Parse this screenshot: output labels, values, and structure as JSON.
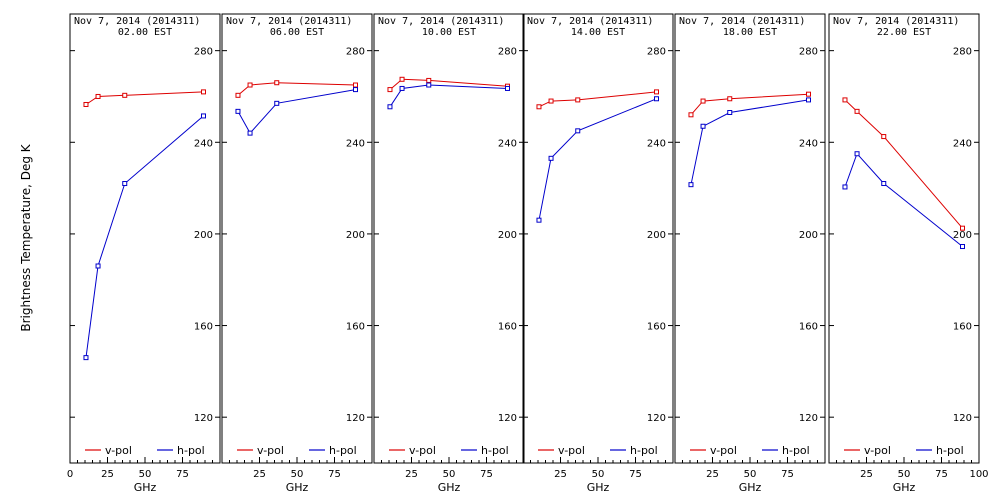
{
  "chart_data": {
    "type": "line",
    "ylabel": "Brightness Temperature, Deg K",
    "xlabel": "GHz",
    "xlim": [
      0,
      100
    ],
    "ylim": [
      100,
      296
    ],
    "x_ticks": [
      0,
      25,
      50,
      75,
      100
    ],
    "x_tick_labels": [
      "0",
      "25",
      "50",
      "75",
      "100"
    ],
    "y_ticks": [
      120,
      160,
      200,
      240,
      280
    ],
    "grid": false,
    "legend_placement": "bottom",
    "series_colors": {
      "v-pol": "#dd0000",
      "h-pol": "#0000cc"
    },
    "panels": [
      {
        "title_line1": "Nov  7, 2014 (2014311)",
        "title_line2": "02.00 EST",
        "x": [
          10.65,
          18.7,
          36.5,
          89
        ],
        "series": [
          {
            "name": "v-pol",
            "values": [
              256.5,
              260,
              260.5,
              262
            ]
          },
          {
            "name": "h-pol",
            "values": [
              146,
              186,
              222,
              251.5
            ]
          }
        ]
      },
      {
        "title_line1": "Nov  7, 2014 (2014311)",
        "title_line2": "06.00 EST",
        "x": [
          10.65,
          18.7,
          36.5,
          89
        ],
        "series": [
          {
            "name": "v-pol",
            "values": [
              260.5,
              265,
              266,
              265
            ]
          },
          {
            "name": "h-pol",
            "values": [
              253.5,
              244,
              257,
              263
            ]
          }
        ]
      },
      {
        "title_line1": "Nov  7, 2014 (2014311)",
        "title_line2": "10.00 EST",
        "x": [
          10.65,
          18.7,
          36.5,
          89
        ],
        "series": [
          {
            "name": "v-pol",
            "values": [
              263,
              267.5,
              267,
              264.5
            ]
          },
          {
            "name": "h-pol",
            "values": [
              255.5,
              263.5,
              265,
              263.5
            ]
          }
        ]
      },
      {
        "title_line1": "Nov  7, 2014 (2014311)",
        "title_line2": "14.00 EST",
        "x": [
          10.65,
          18.7,
          36.5,
          89
        ],
        "series": [
          {
            "name": "v-pol",
            "values": [
              255.5,
              258,
              258.5,
              262
            ]
          },
          {
            "name": "h-pol",
            "values": [
              206,
              233,
              245,
              259
            ]
          }
        ]
      },
      {
        "title_line1": "Nov  7, 2014 (2014311)",
        "title_line2": "18.00 EST",
        "x": [
          10.65,
          18.7,
          36.5,
          89
        ],
        "series": [
          {
            "name": "v-pol",
            "values": [
              252,
              258,
              259,
              261
            ]
          },
          {
            "name": "h-pol",
            "values": [
              221.5,
              247,
              253,
              258.5
            ]
          }
        ]
      },
      {
        "title_line1": "Nov  7, 2014 (2014311)",
        "title_line2": "22.00 EST",
        "x": [
          10.65,
          18.7,
          36.5,
          89
        ],
        "series": [
          {
            "name": "v-pol",
            "values": [
              258.5,
              253.5,
              242.5,
              202.5
            ]
          },
          {
            "name": "h-pol",
            "values": [
              220.5,
              235,
              222,
              194.5
            ]
          }
        ]
      }
    ]
  }
}
